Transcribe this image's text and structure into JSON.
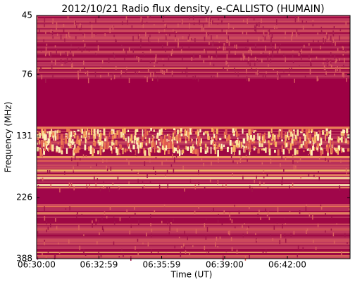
{
  "chart_data": {
    "type": "spectrogram",
    "title": "2012/10/21  Radio flux density, e-CALLISTO (HUMAIN)",
    "x_label": "Time (UT)",
    "y_label": "Frequency (MHz)",
    "xlim": [
      23400,
      24300
    ],
    "xticks": [
      {
        "value": 23400,
        "label": "06:30:00"
      },
      {
        "value": 23579,
        "label": "06:32:59"
      },
      {
        "value": 23759,
        "label": "06:35:59"
      },
      {
        "value": 23940,
        "label": "06:39:00"
      },
      {
        "value": 24120,
        "label": "06:42:00"
      }
    ],
    "ylim": [
      45,
      388
    ],
    "y_log": true,
    "y_inverted": true,
    "yticks": [
      45,
      76,
      131,
      226,
      388
    ]
  }
}
